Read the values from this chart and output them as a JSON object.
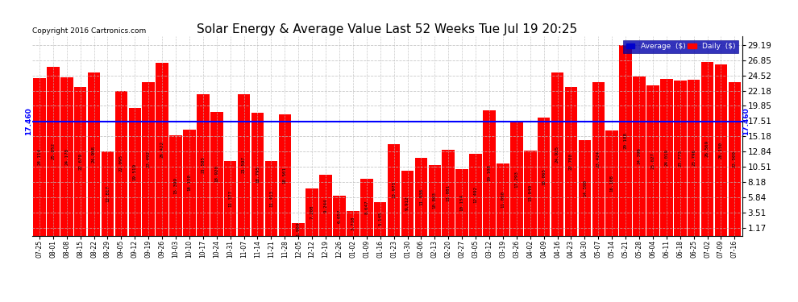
{
  "title": "Solar Energy & Average Value Last 52 Weeks Tue Jul 19 20:25",
  "copyright": "Copyright 2016 Cartronics.com",
  "average_line": 17.46,
  "average_label": "17.460",
  "bar_color": "#FF0000",
  "average_color": "#0000FF",
  "background_color": "#FFFFFF",
  "grid_color": "#BBBBBB",
  "yticks": [
    1.17,
    3.51,
    5.84,
    8.18,
    10.51,
    12.84,
    15.18,
    17.51,
    19.85,
    22.18,
    24.52,
    26.85,
    29.19
  ],
  "legend_avg_color": "#0000CC",
  "legend_daily_color": "#FF0000",
  "categories": [
    "07-25",
    "08-01",
    "08-08",
    "08-15",
    "08-22",
    "08-29",
    "09-05",
    "09-12",
    "09-19",
    "09-26",
    "10-03",
    "10-10",
    "10-17",
    "10-24",
    "10-31",
    "11-07",
    "11-14",
    "11-21",
    "11-28",
    "12-05",
    "12-12",
    "12-19",
    "12-26",
    "01-02",
    "01-09",
    "01-16",
    "01-23",
    "01-30",
    "02-06",
    "02-13",
    "02-20",
    "02-27",
    "03-05",
    "03-12",
    "03-19",
    "03-26",
    "04-02",
    "04-09",
    "04-16",
    "04-23",
    "04-30",
    "05-07",
    "05-14",
    "05-21",
    "05-28",
    "06-04",
    "06-11",
    "06-18",
    "06-25",
    "07-02",
    "07-09",
    "07-16"
  ],
  "values": [
    24.114,
    25.852,
    24.178,
    22.679,
    24.958,
    12.817,
    22.095,
    19.519,
    23.492,
    26.422,
    15.399,
    16.15,
    21.585,
    18.92,
    11.377,
    21.597,
    18.795,
    11.413,
    18.501,
    1.969,
    7.208,
    9.244,
    6.057,
    3.718,
    8.647,
    5.145,
    13.973,
    9.912,
    11.938,
    10.803,
    13.081,
    10.154,
    12.492,
    19.108,
    11.05,
    17.293,
    13.049,
    18.065,
    24.925,
    22.7,
    14.59,
    23.424,
    16.108,
    29.188,
    24.396,
    23.027,
    24.019,
    23.773,
    23.796,
    26.569,
    26.15,
    23.5
  ]
}
